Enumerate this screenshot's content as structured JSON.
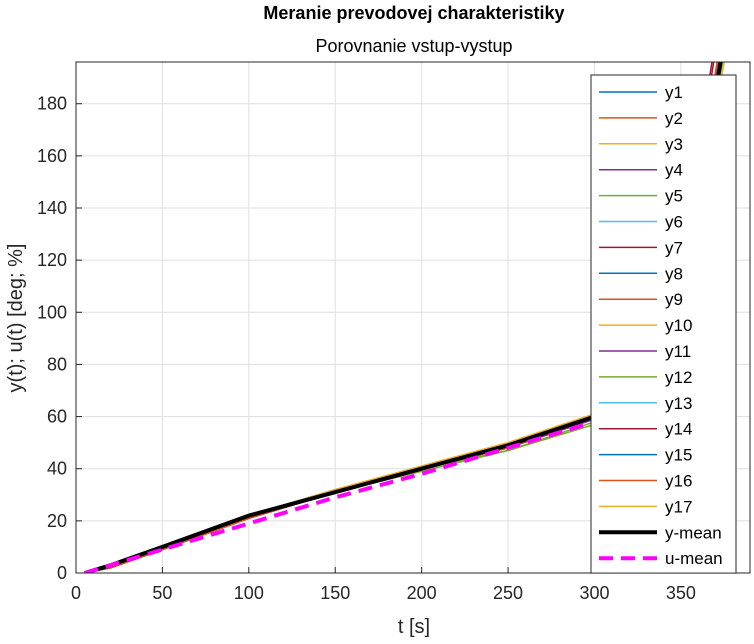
{
  "chart_data": {
    "type": "line",
    "title": "Meranie prevodovej charakteristiky",
    "subtitle": "Porovnanie vstup-vystup",
    "xlabel": "t [s]",
    "ylabel": "y(t); u(t) [deg; %]",
    "xlim": [
      0,
      390
    ],
    "ylim": [
      0,
      196
    ],
    "xticks": [
      0,
      50,
      100,
      150,
      200,
      250,
      300,
      350
    ],
    "yticks": [
      0,
      20,
      40,
      60,
      80,
      100,
      120,
      140,
      160,
      180
    ],
    "grid": true,
    "legend_position": "top-right",
    "series": [
      {
        "name": "y1",
        "color": "#0072BD",
        "style": "solid",
        "points": [
          [
            5,
            0
          ],
          [
            20,
            3
          ],
          [
            50,
            10
          ],
          [
            100,
            22
          ],
          [
            150,
            31
          ],
          [
            200,
            40
          ],
          [
            250,
            49
          ],
          [
            300,
            61
          ],
          [
            330,
            82
          ],
          [
            355,
            130
          ],
          [
            372,
            196
          ]
        ]
      },
      {
        "name": "y2",
        "color": "#D95319",
        "style": "solid",
        "points": [
          [
            5,
            0
          ],
          [
            20,
            2
          ],
          [
            50,
            9
          ],
          [
            100,
            21
          ],
          [
            150,
            31
          ],
          [
            200,
            40
          ],
          [
            250,
            48
          ],
          [
            300,
            60
          ],
          [
            330,
            80
          ],
          [
            356,
            130
          ],
          [
            373,
            196
          ]
        ]
      },
      {
        "name": "y3",
        "color": "#EDB120",
        "style": "solid",
        "points": [
          [
            5,
            0
          ],
          [
            20,
            3
          ],
          [
            50,
            10
          ],
          [
            100,
            22
          ],
          [
            150,
            32
          ],
          [
            200,
            41
          ],
          [
            250,
            50
          ],
          [
            300,
            61
          ],
          [
            330,
            81
          ],
          [
            357,
            130
          ],
          [
            374,
            196
          ]
        ]
      },
      {
        "name": "y4",
        "color": "#7E2F8E",
        "style": "solid",
        "points": [
          [
            5,
            0
          ],
          [
            20,
            2
          ],
          [
            50,
            9
          ],
          [
            100,
            21
          ],
          [
            150,
            31
          ],
          [
            200,
            40
          ],
          [
            250,
            48
          ],
          [
            300,
            59
          ],
          [
            330,
            80
          ],
          [
            355,
            130
          ],
          [
            371,
            196
          ]
        ]
      },
      {
        "name": "y5",
        "color": "#77AC30",
        "style": "solid",
        "points": [
          [
            5,
            0
          ],
          [
            20,
            3
          ],
          [
            50,
            10
          ],
          [
            100,
            22
          ],
          [
            150,
            31
          ],
          [
            200,
            40
          ],
          [
            250,
            47
          ],
          [
            300,
            58
          ],
          [
            330,
            79
          ],
          [
            356,
            130
          ],
          [
            373,
            196
          ]
        ]
      },
      {
        "name": "y6",
        "color": "#4DBEEE",
        "style": "solid",
        "points": [
          [
            5,
            0
          ],
          [
            20,
            3
          ],
          [
            50,
            10
          ],
          [
            100,
            22
          ],
          [
            150,
            32
          ],
          [
            200,
            40
          ],
          [
            250,
            49
          ],
          [
            300,
            60
          ],
          [
            330,
            81
          ],
          [
            357,
            130
          ],
          [
            374,
            196
          ]
        ]
      },
      {
        "name": "y7",
        "color": "#A2142F",
        "style": "solid",
        "points": [
          [
            5,
            0
          ],
          [
            20,
            2
          ],
          [
            50,
            9
          ],
          [
            100,
            21
          ],
          [
            150,
            31
          ],
          [
            200,
            40
          ],
          [
            250,
            48
          ],
          [
            300,
            60
          ],
          [
            330,
            80
          ],
          [
            353,
            130
          ],
          [
            369,
            196
          ]
        ]
      },
      {
        "name": "y8",
        "color": "#0072BD",
        "style": "solid",
        "points": [
          [
            5,
            0
          ],
          [
            20,
            3
          ],
          [
            50,
            10
          ],
          [
            100,
            22
          ],
          [
            150,
            31
          ],
          [
            200,
            40
          ],
          [
            250,
            49
          ],
          [
            300,
            60
          ],
          [
            330,
            81
          ],
          [
            356,
            130
          ],
          [
            372,
            196
          ]
        ]
      },
      {
        "name": "y9",
        "color": "#D95319",
        "style": "solid",
        "points": [
          [
            5,
            0
          ],
          [
            20,
            2
          ],
          [
            50,
            9
          ],
          [
            100,
            21
          ],
          [
            150,
            31
          ],
          [
            200,
            40
          ],
          [
            250,
            48
          ],
          [
            300,
            60
          ],
          [
            330,
            80
          ],
          [
            355,
            130
          ],
          [
            371,
            196
          ]
        ]
      },
      {
        "name": "y10",
        "color": "#EDB120",
        "style": "solid",
        "points": [
          [
            5,
            0
          ],
          [
            20,
            3
          ],
          [
            50,
            10
          ],
          [
            100,
            22
          ],
          [
            150,
            32
          ],
          [
            200,
            41
          ],
          [
            250,
            50
          ],
          [
            300,
            61
          ],
          [
            330,
            82
          ],
          [
            358,
            130
          ],
          [
            375,
            196
          ]
        ]
      },
      {
        "name": "y11",
        "color": "#7E2F8E",
        "style": "solid",
        "points": [
          [
            5,
            0
          ],
          [
            20,
            2
          ],
          [
            50,
            9
          ],
          [
            100,
            21
          ],
          [
            150,
            31
          ],
          [
            200,
            40
          ],
          [
            250,
            48
          ],
          [
            300,
            60
          ],
          [
            330,
            80
          ],
          [
            356,
            130
          ],
          [
            372,
            196
          ]
        ]
      },
      {
        "name": "y12",
        "color": "#77AC30",
        "style": "solid",
        "points": [
          [
            5,
            0
          ],
          [
            20,
            3
          ],
          [
            50,
            10
          ],
          [
            100,
            22
          ],
          [
            150,
            31
          ],
          [
            200,
            39
          ],
          [
            250,
            47
          ],
          [
            300,
            57
          ],
          [
            330,
            78
          ],
          [
            356,
            130
          ],
          [
            374,
            196
          ]
        ]
      },
      {
        "name": "y13",
        "color": "#4DBEEE",
        "style": "solid",
        "points": [
          [
            5,
            0
          ],
          [
            20,
            3
          ],
          [
            50,
            10
          ],
          [
            100,
            22
          ],
          [
            150,
            32
          ],
          [
            200,
            40
          ],
          [
            250,
            49
          ],
          [
            300,
            60
          ],
          [
            330,
            81
          ],
          [
            357,
            130
          ],
          [
            373,
            196
          ]
        ]
      },
      {
        "name": "y14",
        "color": "#A2142F",
        "style": "solid",
        "points": [
          [
            5,
            0
          ],
          [
            20,
            2
          ],
          [
            50,
            9
          ],
          [
            100,
            21
          ],
          [
            150,
            31
          ],
          [
            200,
            40
          ],
          [
            250,
            48
          ],
          [
            300,
            60
          ],
          [
            330,
            80
          ],
          [
            352,
            130
          ],
          [
            368,
            196
          ]
        ]
      },
      {
        "name": "y15",
        "color": "#0072BD",
        "style": "solid",
        "points": [
          [
            5,
            0
          ],
          [
            20,
            3
          ],
          [
            50,
            10
          ],
          [
            100,
            22
          ],
          [
            150,
            31
          ],
          [
            200,
            40
          ],
          [
            250,
            49
          ],
          [
            300,
            60
          ],
          [
            330,
            81
          ],
          [
            356,
            130
          ],
          [
            373,
            196
          ]
        ]
      },
      {
        "name": "y16",
        "color": "#D95319",
        "style": "solid",
        "points": [
          [
            5,
            0
          ],
          [
            20,
            2
          ],
          [
            50,
            9
          ],
          [
            100,
            21
          ],
          [
            150,
            31
          ],
          [
            200,
            40
          ],
          [
            250,
            48
          ],
          [
            300,
            60
          ],
          [
            330,
            80
          ],
          [
            355,
            130
          ],
          [
            372,
            196
          ]
        ]
      },
      {
        "name": "y17",
        "color": "#EDB120",
        "style": "solid",
        "points": [
          [
            5,
            0
          ],
          [
            20,
            3
          ],
          [
            50,
            10
          ],
          [
            100,
            22
          ],
          [
            150,
            32
          ],
          [
            200,
            41
          ],
          [
            250,
            50
          ],
          [
            300,
            61
          ],
          [
            330,
            82
          ],
          [
            358,
            130
          ],
          [
            375,
            196
          ]
        ]
      },
      {
        "name": "y-mean",
        "color": "#000000",
        "style": "solid-thick",
        "points": [
          [
            5,
            0
          ],
          [
            20,
            3
          ],
          [
            50,
            10
          ],
          [
            100,
            22
          ],
          [
            150,
            31
          ],
          [
            200,
            40
          ],
          [
            250,
            49
          ],
          [
            300,
            60
          ],
          [
            330,
            81
          ],
          [
            356,
            130
          ],
          [
            373,
            196
          ]
        ]
      },
      {
        "name": "u-mean",
        "color": "#FF00FF",
        "style": "dashed-thick",
        "points": [
          [
            5,
            0
          ],
          [
            50,
            9
          ],
          [
            100,
            19
          ],
          [
            150,
            29
          ],
          [
            200,
            38
          ],
          [
            250,
            48
          ],
          [
            300,
            58
          ],
          [
            335,
            65
          ]
        ]
      }
    ]
  }
}
